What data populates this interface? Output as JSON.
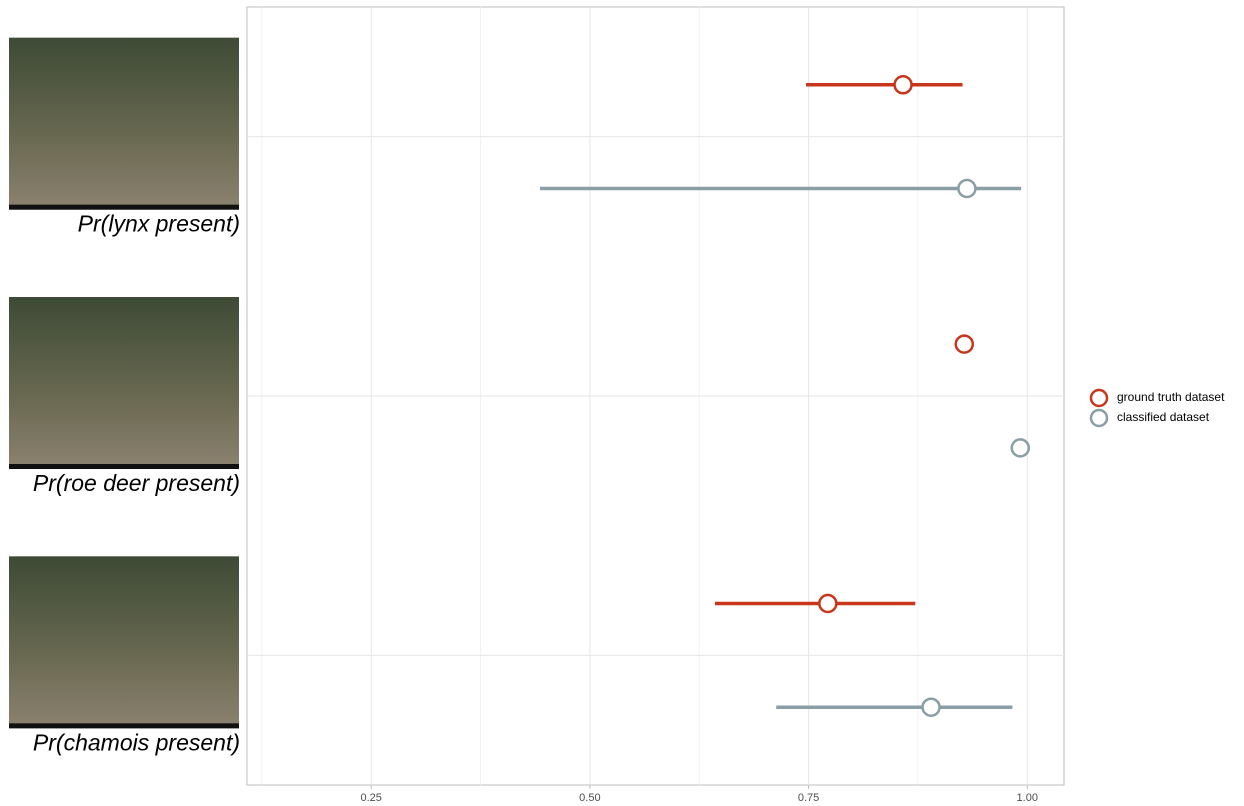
{
  "chart_data": {
    "type": "pointrange",
    "categories": [
      "Pr(lynx present)",
      "Pr(roe deer present)",
      "Pr(chamois present)"
    ],
    "series": [
      {
        "name": "ground truth dataset",
        "color": "#c8361b",
        "values": [
          0.858,
          0.928,
          0.772
        ],
        "lower": [
          0.747,
          null,
          0.643
        ],
        "upper": [
          0.926,
          null,
          0.872
        ]
      },
      {
        "name": "classified dataset",
        "color": "#8a9ea5",
        "values": [
          0.931,
          0.992,
          0.89
        ],
        "lower": [
          0.443,
          null,
          0.713
        ],
        "upper": [
          0.993,
          null,
          0.983
        ]
      }
    ],
    "xlim": [
      0.108,
      1.042
    ],
    "xticks": [
      0.25,
      {
        "value": 0.5,
        "label": "0.50"
      },
      0.75,
      {
        "value": 1,
        "label": "1.00"
      }
    ],
    "xminor": [
      0.125,
      0.375,
      0.625,
      0.875
    ],
    "grid": true,
    "legend": "right"
  }
}
